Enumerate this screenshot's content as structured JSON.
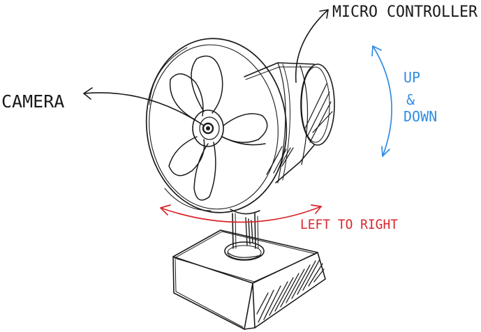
{
  "labels": {
    "camera": "CAMERA",
    "micro_controller": "MICRO CONTROLLER",
    "up": "UP",
    "and": "&",
    "down": "DOWN",
    "left_to_right": "LEFT TO RIGHT"
  },
  "colors": {
    "ink": "#1a1a1a",
    "up_down_arrow": "#2f8de4",
    "left_right_arrow": "#d7262b"
  }
}
